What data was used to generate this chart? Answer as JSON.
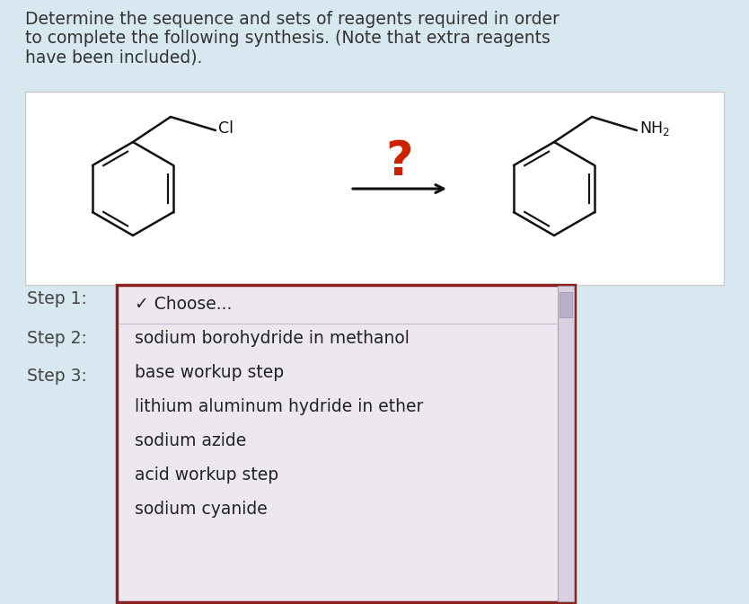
{
  "bg_color": "#d8e8f0",
  "white_box_color": "#ffffff",
  "dropdown_bg": "#ede8f0",
  "dropdown_border": "#8b2020",
  "header_text_lines": [
    "Determine the sequence and sets of reagents required in order",
    "to complete the following synthesis. (Note that extra reagents",
    "have been included)."
  ],
  "header_color": "#333333",
  "header_fontsize": 13.5,
  "step_labels": [
    "Step 1:",
    "Step 2:",
    "Step 3:"
  ],
  "step_label_color": "#444444",
  "step_label_fontsize": 13.5,
  "dropdown_items": [
    "✓ Choose...",
    "sodium borohydride in methanol",
    "base workup step",
    "lithium aluminum hydride in ether",
    "sodium azide",
    "acid workup step",
    "sodium cyanide"
  ],
  "dropdown_item_fontsize": 13.5,
  "dropdown_text_color": "#222222",
  "question_mark_color": "#cc2200",
  "question_mark_fontsize": 38,
  "arrow_color": "#111111",
  "line_color": "#111111",
  "scrollbar_track": "#d8d0e0",
  "scrollbar_thumb": "#b8b0c8",
  "scrollbar_border": "#a8a0b8"
}
